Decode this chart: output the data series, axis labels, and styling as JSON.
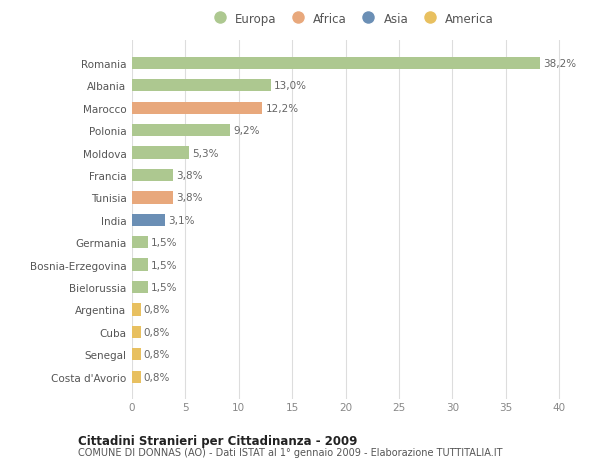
{
  "title1": "Cittadini Stranieri per Cittadinanza - 2009",
  "title2": "COMUNE DI DONNAS (AO) - Dati ISTAT al 1° gennaio 2009 - Elaborazione TUTTITALIA.IT",
  "categories": [
    "Romania",
    "Albania",
    "Marocco",
    "Polonia",
    "Moldova",
    "Francia",
    "Tunisia",
    "India",
    "Germania",
    "Bosnia-Erzegovina",
    "Bielorussia",
    "Argentina",
    "Cuba",
    "Senegal",
    "Costa d'Avorio"
  ],
  "values": [
    38.2,
    13.0,
    12.2,
    9.2,
    5.3,
    3.8,
    3.8,
    3.1,
    1.5,
    1.5,
    1.5,
    0.8,
    0.8,
    0.8,
    0.8
  ],
  "labels": [
    "38,2%",
    "13,0%",
    "12,2%",
    "9,2%",
    "5,3%",
    "3,8%",
    "3,8%",
    "3,1%",
    "1,5%",
    "1,5%",
    "1,5%",
    "0,8%",
    "0,8%",
    "0,8%",
    "0,8%"
  ],
  "colors": [
    "#adc890",
    "#adc890",
    "#e8a87c",
    "#adc890",
    "#adc890",
    "#adc890",
    "#e8a87c",
    "#6b8fb5",
    "#adc890",
    "#adc890",
    "#adc890",
    "#e8c060",
    "#e8c060",
    "#e8c060",
    "#e8c060"
  ],
  "continent_labels": [
    "Europa",
    "Africa",
    "Asia",
    "America"
  ],
  "continent_colors": [
    "#adc890",
    "#e8a87c",
    "#6b8fb5",
    "#e8c060"
  ],
  "xlim": [
    0,
    41
  ],
  "xticks": [
    0,
    5,
    10,
    15,
    20,
    25,
    30,
    35,
    40
  ],
  "background_color": "#ffffff",
  "grid_color": "#dddddd",
  "bar_height": 0.55,
  "label_fontsize": 7.5,
  "tick_fontsize": 7.5,
  "legend_fontsize": 8.5
}
